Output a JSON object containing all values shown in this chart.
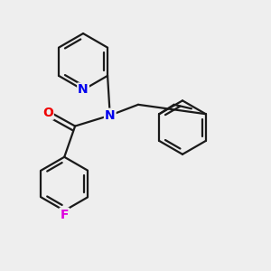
{
  "bg_color": "#f0f0f0",
  "bond_color": "#1a1a1a",
  "bond_width": 1.6,
  "atom_colors": {
    "N": "#0000ee",
    "O": "#ee0000",
    "F": "#dd00dd"
  },
  "fig_bg": "#eeeeee"
}
